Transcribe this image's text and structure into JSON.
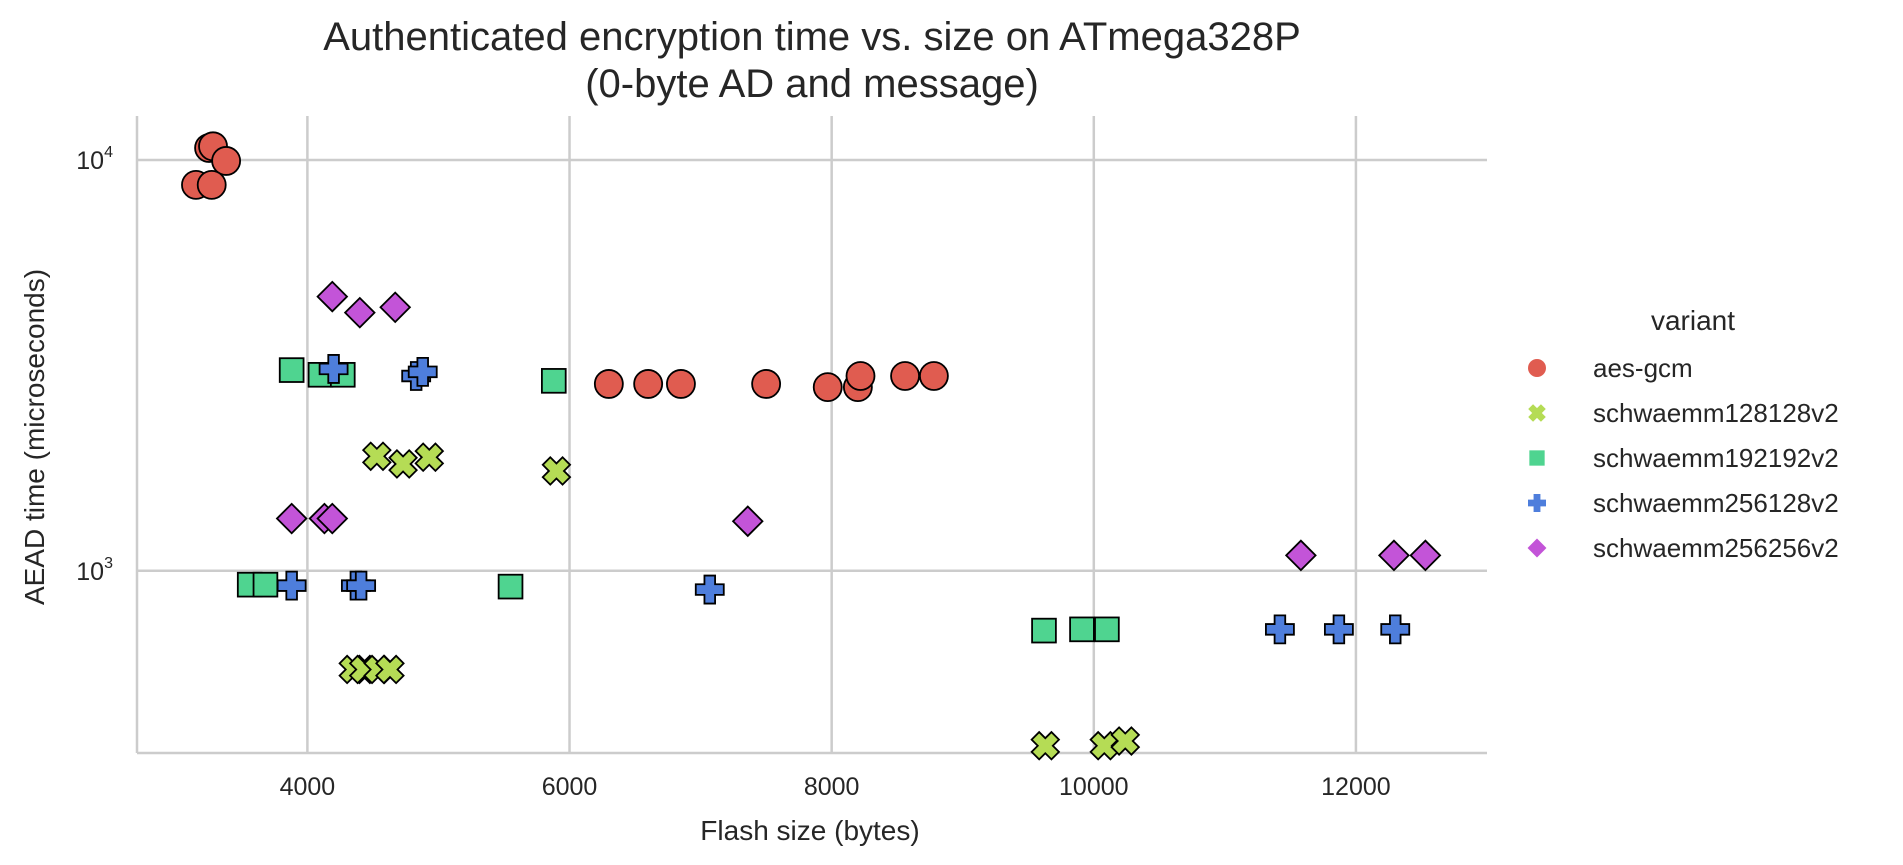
{
  "chart_data": {
    "type": "scatter",
    "title": "Authenticated encryption time vs. size on ATmega328P",
    "subtitle": "(0-byte AD and message)",
    "xlabel": "Flash size (bytes)",
    "ylabel": "AEAD time (microseconds)",
    "xlim": [
      2700,
      13000
    ],
    "ylim": [
      360,
      12800
    ],
    "yscale": "log",
    "grid": true,
    "x_ticks": [
      4000,
      6000,
      8000,
      10000,
      12000
    ],
    "x_tick_labels": [
      "4000",
      "6000",
      "8000",
      "10000",
      "12000"
    ],
    "y_ticks": [
      {
        "value": 1000,
        "base": "10",
        "exp": "3"
      },
      {
        "value": 10000,
        "base": "10",
        "exp": "4"
      }
    ],
    "legend": {
      "title": "variant",
      "position": "right"
    },
    "series": [
      {
        "name": "aes-gcm",
        "marker": "circle",
        "color": "#e05c50",
        "points": [
          [
            3250,
            10700
          ],
          [
            3280,
            10800
          ],
          [
            3380,
            9950
          ],
          [
            3150,
            8700
          ],
          [
            3270,
            8700
          ],
          [
            6300,
            2850
          ],
          [
            6600,
            2850
          ],
          [
            6850,
            2850
          ],
          [
            7500,
            2850
          ],
          [
            7970,
            2800
          ],
          [
            8200,
            2800
          ],
          [
            8220,
            2980
          ],
          [
            8560,
            2980
          ],
          [
            8780,
            2980
          ]
        ]
      },
      {
        "name": "schwaemm128128v2",
        "marker": "x",
        "color": "#b5dc55",
        "points": [
          [
            4530,
            1900
          ],
          [
            4730,
            1820
          ],
          [
            4930,
            1890
          ],
          [
            5900,
            1750
          ],
          [
            4350,
            575
          ],
          [
            4430,
            575
          ],
          [
            4540,
            575
          ],
          [
            4630,
            575
          ],
          [
            9630,
            375
          ],
          [
            10080,
            375
          ],
          [
            10240,
            385
          ]
        ]
      },
      {
        "name": "schwaemm192192v2",
        "marker": "square",
        "color": "#4fd490",
        "points": [
          [
            3880,
            3080
          ],
          [
            4100,
            3000
          ],
          [
            4270,
            3000
          ],
          [
            5880,
            2900
          ],
          [
            3560,
            925
          ],
          [
            3680,
            925
          ],
          [
            5550,
            915
          ],
          [
            9620,
            715
          ],
          [
            9910,
            720
          ],
          [
            10100,
            720
          ]
        ]
      },
      {
        "name": "schwaemm256128v2",
        "marker": "plus",
        "color": "#4e7edc",
        "points": [
          [
            4200,
            3100
          ],
          [
            4830,
            2980
          ],
          [
            4880,
            3050
          ],
          [
            3880,
            920
          ],
          [
            4370,
            920
          ],
          [
            4410,
            920
          ],
          [
            7070,
            900
          ],
          [
            11420,
            720
          ],
          [
            11870,
            720
          ],
          [
            12300,
            720
          ]
        ]
      },
      {
        "name": "schwaemm256256v2",
        "marker": "diamond",
        "color": "#c354d8",
        "points": [
          [
            4190,
            4650
          ],
          [
            4400,
            4250
          ],
          [
            4670,
            4380
          ],
          [
            3880,
            1340
          ],
          [
            4130,
            1340
          ],
          [
            4190,
            1340
          ],
          [
            7360,
            1320
          ],
          [
            11580,
            1090
          ],
          [
            12290,
            1090
          ],
          [
            12530,
            1090
          ]
        ]
      }
    ]
  }
}
